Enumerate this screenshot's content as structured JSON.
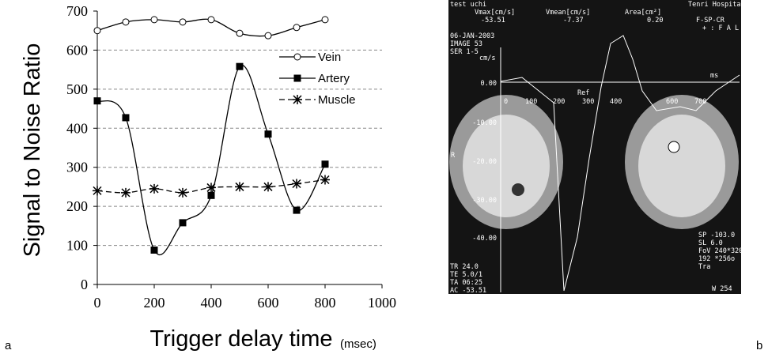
{
  "chart_data": {
    "type": "line",
    "y_label": "Signal to Noise Ratio",
    "x_label": "Trigger delay time",
    "x_unit": "(msec)",
    "x": [
      0,
      100,
      200,
      300,
      400,
      500,
      600,
      700,
      800
    ],
    "series": [
      {
        "name": "Vein",
        "color": "#000000",
        "marker": "circle",
        "dash": "solid",
        "values": [
          650,
          672,
          678,
          672,
          678,
          643,
          637,
          658,
          678
        ]
      },
      {
        "name": "Artery",
        "color": "#000000",
        "marker": "square",
        "dash": "solid",
        "values": [
          470,
          427,
          88,
          158,
          228,
          558,
          385,
          190,
          308
        ]
      },
      {
        "name": "Muscle",
        "color": "#000000",
        "marker": "star",
        "dash": "dashed",
        "values": [
          240,
          235,
          245,
          235,
          248,
          250,
          250,
          258,
          268
        ]
      }
    ],
    "xlim": [
      0,
      1000
    ],
    "xticks": [
      0,
      200,
      400,
      600,
      800,
      1000
    ],
    "ylim": [
      0,
      700
    ],
    "yticks": [
      0,
      100,
      200,
      300,
      400,
      500,
      600,
      700
    ],
    "grid": true,
    "legend": "upper right"
  },
  "panel_labels": [
    "a",
    "b"
  ],
  "panel_b": {
    "header": [
      "test uchi",
      "Vmax[cm/s]",
      "-53.51",
      "Vmean[cm/s]",
      "-7.37",
      "Area[cm²]",
      "0.20",
      "Tenri Hospital",
      "F-SP-CR",
      "+ : F A L",
      "06-JAN-2003",
      "IMAGE 53",
      "SER 1-5"
    ],
    "y_unit": "cm/s",
    "y_labels": [
      "0.00",
      "-10.00",
      "-20.00",
      "-30.00",
      "-40.00"
    ],
    "x_labels": [
      "0",
      "100",
      "200",
      "300",
      "400",
      "600",
      "700"
    ],
    "marks": [
      "Ref",
      "ms",
      "R"
    ],
    "left_params": [
      "TR 24.0",
      "TE 5.0/1",
      "TA 06:25",
      "AC -53.51"
    ],
    "right_params": [
      "SP -103.0",
      "SL 6.0",
      "FoV 240*320",
      "192 *256o",
      "Tra",
      "W 254"
    ]
  }
}
